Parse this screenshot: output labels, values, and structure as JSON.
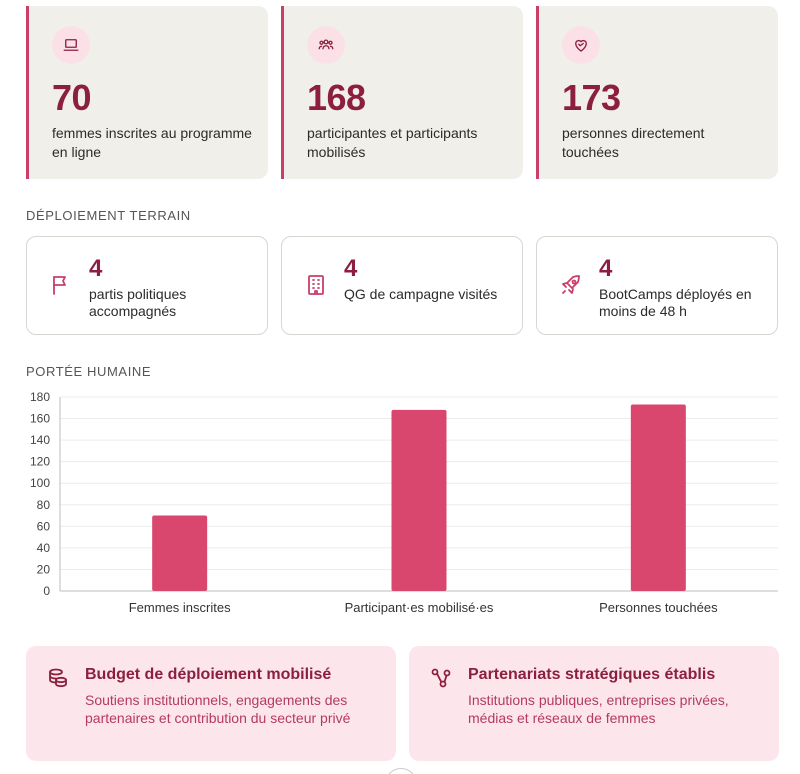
{
  "stats": [
    {
      "icon": "laptop-icon",
      "value": "70",
      "label": "femmes inscrites au programme en ligne"
    },
    {
      "icon": "users-icon",
      "value": "168",
      "label": "participantes et participants mobilisés"
    },
    {
      "icon": "heart-handshake-icon",
      "value": "173",
      "label": "personnes directement touchées"
    }
  ],
  "sections": {
    "field": "DÉPLOIEMENT TERRAIN",
    "reach": "PORTÉE HUMAINE"
  },
  "field_items": [
    {
      "icon": "flag-icon",
      "value": "4",
      "label": "partis politiques accompagnés"
    },
    {
      "icon": "building-icon",
      "value": "4",
      "label": "QG de campagne visités"
    },
    {
      "icon": "rocket-icon",
      "value": "4",
      "label": "BootCamps déployés en moins de 48 h"
    }
  ],
  "chart_data": {
    "type": "bar",
    "categories": [
      "Femmes inscrites",
      "Participant·es mobilisé·es",
      "Personnes touchées"
    ],
    "values": [
      70,
      168,
      173
    ],
    "ylim": [
      0,
      180
    ],
    "yticks": [
      0,
      20,
      40,
      60,
      80,
      100,
      120,
      140,
      160,
      180
    ],
    "grid": true,
    "bar_color": "#d9476e"
  },
  "info": [
    {
      "icon": "coins-icon",
      "title": "Budget de déploiement mobilisé",
      "text": "Soutiens institutionnels, engagements des partenaires et contribution du secteur privé"
    },
    {
      "icon": "network-icon",
      "title": "Partenariats stratégiques établis",
      "text": "Institutions publiques, entreprises privées, médias et réseaux de femmes"
    }
  ],
  "colors": {
    "accent": "#8c1f40",
    "bar": "#d9476e",
    "soft": "#fde6eb",
    "card": "#f1efea"
  }
}
